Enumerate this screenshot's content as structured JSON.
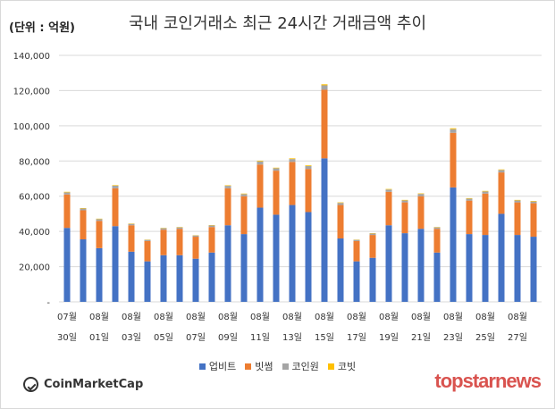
{
  "unit_label": "(단위 : 억원)",
  "brand_left": "CoinMarketCap",
  "brand_right": "topstarnews",
  "colors": {
    "upbit": "#4472c4",
    "bithumb": "#ed7d31",
    "coinone": "#a5a5a5",
    "korbit": "#ffc000",
    "gridline": "#d9d9d9",
    "axis_text": "#333333"
  },
  "chart_data": {
    "type": "bar",
    "stacked": true,
    "title": "국내 코인거래소 최근 24시간 거래금액 추이",
    "xlabel": "",
    "ylabel": "",
    "ylim": [
      0,
      140000
    ],
    "y_ticks": [
      "-",
      "20,000",
      "40,000",
      "60,000",
      "80,000",
      "100,000",
      "120,000",
      "140,000"
    ],
    "grid": true,
    "legend_position": "bottom",
    "x_tick_labels": [
      [
        "07월",
        "30일"
      ],
      [
        "08월",
        "01일"
      ],
      [
        "08월",
        "03일"
      ],
      [
        "08월",
        "05일"
      ],
      [
        "08월",
        "07일"
      ],
      [
        "08월",
        "09일"
      ],
      [
        "08월",
        "11일"
      ],
      [
        "08월",
        "13일"
      ],
      [
        "08월",
        "15일"
      ],
      [
        "08월",
        "17일"
      ],
      [
        "08월",
        "19일"
      ],
      [
        "08월",
        "21일"
      ],
      [
        "08월",
        "23일"
      ],
      [
        "08월",
        "25일"
      ],
      [
        "08월",
        "27일"
      ]
    ],
    "categories": [
      "07월 30일",
      "07월 31일",
      "08월 01일",
      "08월 02일",
      "08월 03일",
      "08월 04일",
      "08월 05일",
      "08월 06일",
      "08월 07일",
      "08월 08일",
      "08월 09일",
      "08월 10일",
      "08월 11일",
      "08월 12일",
      "08월 13일",
      "08월 14일",
      "08월 15일",
      "08월 16일",
      "08월 17일",
      "08월 18일",
      "08월 19일",
      "08월 20일",
      "08월 21일",
      "08월 22일",
      "08월 23일",
      "08월 24일",
      "08월 25일",
      "08월 26일",
      "08월 27일",
      "08월 28일"
    ],
    "series": [
      {
        "name": "업비트",
        "color": "#4472c4",
        "values": [
          42000,
          35500,
          30500,
          43000,
          28500,
          23000,
          26500,
          26500,
          24500,
          28000,
          43500,
          38500,
          53500,
          49500,
          55000,
          51000,
          81500,
          36000,
          23000,
          25000,
          43500,
          39000,
          41500,
          28000,
          65000,
          38500,
          38000,
          50000,
          38000,
          37000
        ]
      },
      {
        "name": "빗썸",
        "color": "#ed7d31",
        "values": [
          19000,
          16500,
          15500,
          21500,
          15000,
          11500,
          14500,
          15000,
          12500,
          14500,
          21000,
          21500,
          24500,
          25000,
          24500,
          24500,
          39000,
          19000,
          11500,
          13000,
          19000,
          17500,
          18500,
          13500,
          31000,
          19000,
          23500,
          23500,
          18500,
          19000
        ]
      },
      {
        "name": "코인원",
        "color": "#a5a5a5",
        "values": [
          1200,
          1000,
          1000,
          1500,
          800,
          700,
          800,
          800,
          700,
          900,
          1400,
          1200,
          1800,
          1400,
          1600,
          1600,
          2500,
          1200,
          700,
          800,
          1300,
          1100,
          1300,
          800,
          2100,
          1100,
          1200,
          1400,
          1100,
          1000
        ]
      },
      {
        "name": "코빗",
        "color": "#ffc000",
        "values": [
          300,
          250,
          250,
          300,
          200,
          150,
          200,
          200,
          150,
          200,
          300,
          300,
          400,
          300,
          400,
          400,
          600,
          300,
          150,
          200,
          300,
          300,
          300,
          200,
          500,
          300,
          300,
          300,
          300,
          300
        ]
      }
    ]
  }
}
